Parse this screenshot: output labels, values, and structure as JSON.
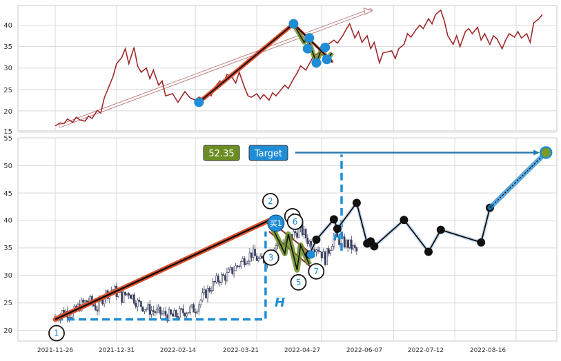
{
  "chart_data": [
    {
      "type": "line",
      "panel": "top",
      "grid": true,
      "ylim": [
        15,
        44
      ],
      "y_ticks": [
        "15",
        "20",
        "25",
        "30",
        "35",
        "40"
      ],
      "series": [
        {
          "color": "#a0282a",
          "x": [
            "2021-11-26",
            "2021-11-29",
            "2021-12-01",
            "2021-12-03",
            "2021-12-06",
            "2021-12-08",
            "2021-12-10",
            "2021-12-13",
            "2021-12-15",
            "2021-12-17",
            "2021-12-20",
            "2021-12-22",
            "2021-12-24",
            "2021-12-27",
            "2021-12-29",
            "2021-12-31",
            "2022-01-03",
            "2022-01-05",
            "2022-01-07",
            "2022-01-10",
            "2022-01-12",
            "2022-01-14",
            "2022-01-17",
            "2022-01-19",
            "2022-01-21",
            "2022-01-24",
            "2022-01-26",
            "2022-01-28",
            "2022-02-01",
            "2022-02-04",
            "2022-02-08",
            "2022-02-11",
            "2022-02-14",
            "2022-02-16",
            "2022-02-18",
            "2022-02-21",
            "2022-02-23",
            "2022-02-25",
            "2022-02-28",
            "2022-03-02",
            "2022-03-04",
            "2022-03-07",
            "2022-03-09",
            "2022-03-11",
            "2022-03-14",
            "2022-03-16",
            "2022-03-18",
            "2022-03-21",
            "2022-03-23",
            "2022-03-25",
            "2022-03-28",
            "2022-03-30",
            "2022-04-01",
            "2022-04-06",
            "2022-04-08",
            "2022-04-11",
            "2022-04-13",
            "2022-04-15",
            "2022-04-18",
            "2022-04-20",
            "2022-04-22",
            "2022-04-25",
            "2022-04-27",
            "2022-04-29",
            "2022-05-04",
            "2022-05-06",
            "2022-05-09",
            "2022-05-11",
            "2022-05-13",
            "2022-05-16",
            "2022-05-18",
            "2022-05-20",
            "2022-05-23",
            "2022-05-25",
            "2022-05-27",
            "2022-05-30",
            "2022-06-01",
            "2022-06-06",
            "2022-06-08",
            "2022-06-10",
            "2022-06-13",
            "2022-06-15",
            "2022-06-17",
            "2022-06-20",
            "2022-06-22",
            "2022-06-24",
            "2022-06-27",
            "2022-06-29",
            "2022-07-01",
            "2022-07-04",
            "2022-07-06",
            "2022-07-08",
            "2022-07-11",
            "2022-07-13",
            "2022-07-15",
            "2022-07-18",
            "2022-07-20",
            "2022-07-22",
            "2022-07-25",
            "2022-07-27",
            "2022-07-29",
            "2022-08-01",
            "2022-08-03",
            "2022-08-05",
            "2022-08-08",
            "2022-08-10",
            "2022-08-12",
            "2022-08-15",
            "2022-08-17",
            "2022-08-19",
            "2022-08-22",
            "2022-08-24",
            "2022-08-26",
            "2022-08-29",
            "2022-08-31"
          ],
          "values": [
            16.5,
            17.2,
            17.0,
            18.1,
            17.3,
            18.5,
            17.9,
            17.6,
            18.8,
            18.2,
            20.1,
            19.5,
            23.0,
            26.0,
            28.0,
            31.0,
            32.5,
            34.5,
            31.0,
            34.8,
            30.5,
            29.0,
            30.0,
            27.5,
            29.5,
            26.0,
            27.0,
            23.5,
            24.0,
            22.0,
            24.5,
            23.0,
            22.5,
            23.2,
            22.8,
            24.0,
            23.5,
            25.5,
            27.0,
            26.5,
            28.5,
            27.8,
            26.5,
            29.0,
            25.5,
            23.5,
            23.2,
            24.0,
            22.8,
            23.8,
            22.5,
            24.2,
            23.5,
            26.0,
            25.2,
            27.5,
            28.8,
            30.5,
            29.5,
            31.0,
            32.5,
            33.5,
            33.0,
            35.0,
            36.5,
            35.8,
            37.5,
            39.0,
            40.3,
            37.0,
            38.5,
            36.0,
            37.5,
            34.5,
            36.0,
            31.2,
            33.5,
            34.0,
            32.2,
            34.5,
            35.5,
            38.0,
            37.2,
            39.0,
            40.0,
            39.2,
            41.5,
            40.3,
            42.5,
            43.5,
            41.0,
            37.5,
            35.5,
            37.5,
            35.0,
            38.5,
            39.2,
            38.0,
            39.5,
            36.5,
            38.0,
            35.5,
            37.5,
            36.8,
            34.5,
            36.5,
            38.0,
            37.2,
            38.5,
            37.0,
            38.0,
            36.0,
            40.5,
            41.5,
            42.5
          ]
        }
      ],
      "trend_lines": [
        {
          "color": "#000000",
          "from": [
            "2022-02-16",
            22.0
          ],
          "to": [
            "2022-04-11",
            40.3
          ]
        },
        {
          "color": "#000000",
          "from": [
            "2022-04-11",
            40.3
          ],
          "to": [
            "2022-05-03",
            31.5
          ]
        },
        {
          "color": "#ffffff",
          "from": [
            "2021-11-29",
            16.5
          ],
          "to": [
            "2022-05-25",
            43.5
          ]
        }
      ],
      "markers": [
        {
          "x": "2022-02-16",
          "y": 22.0
        },
        {
          "x": "2022-04-11",
          "y": 40.3
        },
        {
          "x": "2022-04-20",
          "y": 37.0
        },
        {
          "x": "2022-04-19",
          "y": 34.5
        },
        {
          "x": "2022-04-24",
          "y": 31.2
        },
        {
          "x": "2022-04-29",
          "y": 34.8
        },
        {
          "x": "2022-04-30",
          "y": 32.0
        }
      ]
    },
    {
      "type": "candlestick",
      "panel": "bottom",
      "grid": true,
      "ylim": [
        18,
        55
      ],
      "y_ticks": [
        "20",
        "25",
        "30",
        "35",
        "40",
        "45",
        "50",
        "55"
      ],
      "x_ticks": [
        "2021-11-26",
        "2021-12-31",
        "2022-02-14",
        "2022-03-21",
        "2022-04-27",
        "2022-06-07",
        "2022-07-12",
        "2022-08-16"
      ],
      "price_series": [
        {
          "color": "#3a3f5c",
          "x": [
            "2021-11-26",
            "2021-12-01",
            "2021-12-06",
            "2021-12-10",
            "2021-12-15",
            "2021-12-20",
            "2021-12-24",
            "2021-12-29",
            "2022-01-03",
            "2022-01-07",
            "2022-01-12",
            "2022-01-17",
            "2022-01-21",
            "2022-01-26",
            "2022-02-01",
            "2022-02-08",
            "2022-02-14",
            "2022-02-18",
            "2022-02-23",
            "2022-02-28",
            "2022-03-04",
            "2022-03-09",
            "2022-03-14",
            "2022-03-18",
            "2022-03-23",
            "2022-03-28",
            "2022-04-01",
            "2022-04-06",
            "2022-04-11",
            "2022-04-15",
            "2022-04-20",
            "2022-04-25",
            "2022-04-29",
            "2022-05-04",
            "2022-05-09",
            "2022-05-13",
            "2022-05-18"
          ],
          "values": [
            22.5,
            23.5,
            23.0,
            24.5,
            25.5,
            24.0,
            26.5,
            27.5,
            26.0,
            27.0,
            25.0,
            24.0,
            23.5,
            23.0,
            22.5,
            23.5,
            24.0,
            26.0,
            28.0,
            29.5,
            30.0,
            31.5,
            33.0,
            34.0,
            32.5,
            33.5,
            35.5,
            36.0,
            37.5,
            38.5,
            36.0,
            35.0,
            33.0,
            37.0,
            36.0,
            35.5,
            34.0
          ]
        }
      ],
      "pattern_points": [
        {
          "label": "1",
          "x": "2021-11-26",
          "y": 22.0
        },
        {
          "label": "2",
          "x": "2022-03-28",
          "y": 40.0
        },
        {
          "label": "3",
          "x": "2022-04-06",
          "y": 34.0
        },
        {
          "label": "4",
          "x": "2022-04-08",
          "y": 37.5
        },
        {
          "label": "5",
          "x": "2022-04-13",
          "y": 31.0
        },
        {
          "label": "6",
          "x": "2022-04-15",
          "y": 35.5
        },
        {
          "label": "7",
          "x": "2022-04-20",
          "y": 32.0
        }
      ],
      "signal": {
        "label": "买1",
        "x": "2022-03-28",
        "y": 39.5
      },
      "h_label": "H",
      "h_small_label": "H",
      "target_value": "52.35",
      "target_label": "Target",
      "target_point": {
        "x": "2022-09-02",
        "y": 52.35
      },
      "black_path": [
        {
          "x": "2022-04-20",
          "y": 33.8
        },
        {
          "x": "2022-04-24",
          "y": 36.5
        },
        {
          "x": "2022-05-04",
          "y": 40.2
        },
        {
          "x": "2022-05-06",
          "y": 38.5
        },
        {
          "x": "2022-05-17",
          "y": 43.2
        },
        {
          "x": "2022-05-23",
          "y": 35.8
        },
        {
          "x": "2022-05-25",
          "y": 36.2
        },
        {
          "x": "2022-05-27",
          "y": 35.3
        },
        {
          "x": "2022-06-13",
          "y": 40.1
        },
        {
          "x": "2022-06-27",
          "y": 34.3
        },
        {
          "x": "2022-07-04",
          "y": 38.3
        },
        {
          "x": "2022-07-27",
          "y": 36.0
        },
        {
          "x": "2022-08-01",
          "y": 42.3
        }
      ]
    }
  ],
  "colors": {
    "price_line": "#a0282a",
    "trend_orange": "#e0502e",
    "pattern_green": "#6b8e23",
    "marker_blue": "#1f8dd6",
    "target_box": "#1f8dd6",
    "value_box": "#6b8e23",
    "candles": "#3a3f5c"
  }
}
